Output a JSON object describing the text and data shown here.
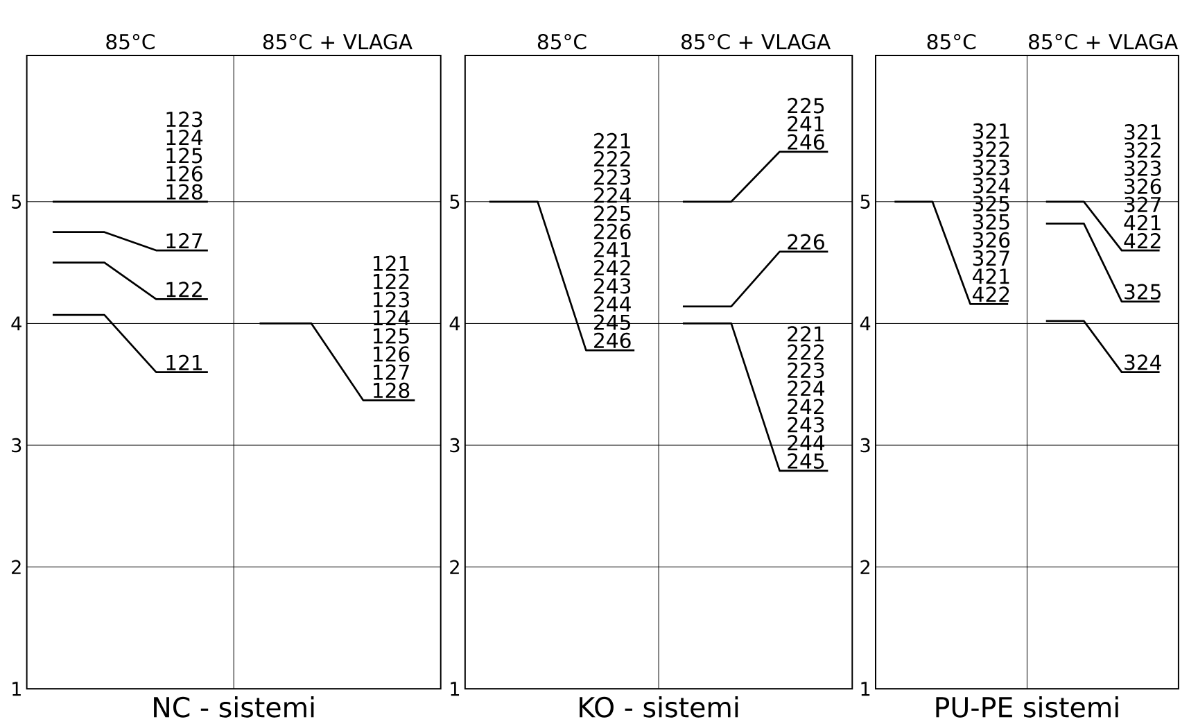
{
  "chart_data": [
    {
      "type": "line",
      "xlabel": "NC - sistemi",
      "annotations": [
        "85°C",
        "85°C + VLAGA"
      ],
      "categories": [
        null,
        null,
        null,
        null,
        null,
        null,
        null,
        null
      ],
      "ylim": [
        1,
        6.2
      ],
      "yticks": [
        1,
        2,
        3,
        4,
        5
      ],
      "grid": "y",
      "series": [
        {
          "name": "123 124 125 126 128",
          "color": "#000000",
          "values": [
            5,
            5,
            5,
            5,
            null,
            null,
            null,
            null
          ]
        },
        {
          "name": "127",
          "color": "#000000",
          "values": [
            4.75,
            4.75,
            4.6,
            4.6,
            null,
            null,
            null,
            null
          ]
        },
        {
          "name": "122",
          "color": "#000000",
          "values": [
            4.5,
            4.5,
            4.2,
            4.2,
            null,
            null,
            null,
            null
          ]
        },
        {
          "name": "121",
          "color": "#000000",
          "values": [
            4.07,
            4.07,
            3.6,
            3.6,
            null,
            null,
            null,
            null
          ]
        },
        {
          "name": "121 122 123 124 125 126 127 128",
          "color": "#000000",
          "values": [
            null,
            null,
            null,
            null,
            4.0,
            4.0,
            3.37,
            3.37
          ]
        }
      ]
    },
    {
      "type": "line",
      "xlabel": "KO - sistemi",
      "annotations": [
        "85°C",
        "85°C + VLAGA"
      ],
      "categories": [
        null,
        null,
        null,
        null,
        null,
        null,
        null,
        null
      ],
      "ylim": [
        1,
        6.2
      ],
      "yticks": [
        1,
        2,
        3,
        4,
        5
      ],
      "grid": "y",
      "series": [
        {
          "name": "221 222 223 224 225 226 241 242 243 244 245 246",
          "color": "#000000",
          "values": [
            5,
            5,
            3.78,
            3.78,
            null,
            null,
            null,
            null
          ]
        },
        {
          "name": "225 241 246",
          "color": "#000000",
          "values": [
            null,
            null,
            null,
            null,
            5,
            5,
            5.41,
            5.41
          ]
        },
        {
          "name": "226",
          "color": "#000000",
          "values": [
            null,
            null,
            null,
            null,
            4.14,
            4.14,
            4.59,
            4.59
          ]
        },
        {
          "name": "221 222 223 224 242 243 244 245",
          "color": "#000000",
          "values": [
            null,
            null,
            null,
            null,
            4.0,
            4.0,
            2.79,
            2.79
          ]
        }
      ]
    },
    {
      "type": "line",
      "xlabel": "PU-PE sistemi",
      "annotations": [
        "85°C",
        "85°C + VLAGA"
      ],
      "categories": [
        null,
        null,
        null,
        null,
        null,
        null,
        null,
        null
      ],
      "ylim": [
        1,
        6.2
      ],
      "yticks": [
        1,
        2,
        3,
        4,
        5
      ],
      "grid": "y",
      "series": [
        {
          "name": "321 322 323 324 325 325 326 327 421 422",
          "color": "#000000",
          "values": [
            5,
            5,
            4.16,
            4.16,
            null,
            null,
            null,
            null
          ]
        },
        {
          "name": "321 322 323 326 327 421 422",
          "color": "#000000",
          "values": [
            null,
            null,
            null,
            null,
            5,
            5,
            4.6,
            4.6
          ]
        },
        {
          "name": "325",
          "color": "#000000",
          "values": [
            null,
            null,
            null,
            null,
            4.82,
            4.82,
            4.18,
            4.18
          ]
        },
        {
          "name": "324",
          "color": "#000000",
          "values": [
            null,
            null,
            null,
            null,
            4.02,
            4.02,
            3.6,
            3.6
          ]
        }
      ]
    }
  ]
}
